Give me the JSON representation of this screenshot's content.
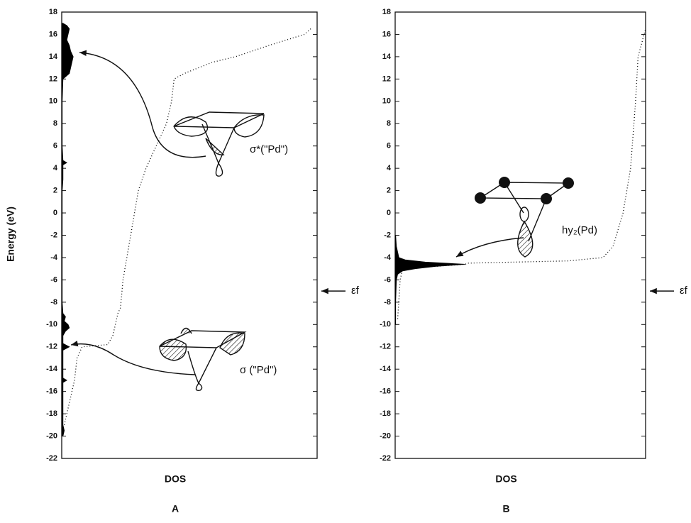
{
  "chart_data": [
    {
      "type": "dos",
      "label": "A",
      "ylabel": "Energy (eV)",
      "xlabel": "DOS",
      "ylim": [
        -22,
        18
      ],
      "yticks": [
        -22,
        -20,
        -18,
        -16,
        -14,
        -12,
        -10,
        -8,
        -6,
        -4,
        -2,
        0,
        2,
        4,
        6,
        8,
        10,
        12,
        14,
        16,
        18
      ],
      "xlim": [
        0,
        10
      ],
      "fermi_level": -7,
      "fermi_label": "εf",
      "annotations": [
        "σ*(\"Pd\")",
        "σ (\"Pd\")"
      ],
      "series": [
        {
          "style": "filled",
          "color": "#000000",
          "y": [
            -20,
            -19.5,
            -19,
            -18,
            -17,
            -16,
            -15.2,
            -15,
            -14.8,
            -14,
            -13,
            -12.3,
            -12,
            -11.7,
            -11,
            -10.6,
            -10.3,
            -10,
            -9.7,
            -9.3,
            -9,
            -8,
            -6,
            -4,
            -2,
            0,
            2,
            3,
            4.3,
            4.5,
            4.7,
            6,
            8,
            10,
            12,
            12.5,
            13,
            13.5,
            14,
            14.5,
            15,
            15.5,
            16,
            16.5,
            16.8,
            17
          ],
          "values": [
            0.05,
            0.1,
            0.05,
            0.05,
            0.05,
            0.05,
            0.05,
            0.2,
            0.05,
            0.05,
            0.05,
            0.05,
            0.3,
            0.05,
            0.05,
            0.15,
            0.3,
            0.25,
            0.1,
            0.15,
            0.05,
            0.02,
            0.02,
            0.02,
            0.02,
            0.02,
            0.02,
            0.05,
            0.05,
            0.2,
            0.05,
            0.02,
            0.02,
            0.02,
            0.05,
            0.3,
            0.35,
            0.4,
            0.45,
            0.35,
            0.3,
            0.2,
            0.25,
            0.3,
            0.2,
            0.05
          ]
        },
        {
          "style": "dotted",
          "color": "#000000",
          "y": [
            -19,
            -17,
            -15,
            -13,
            -12,
            -11.8,
            -11,
            -9,
            -8.5,
            -6,
            -2,
            2,
            4,
            6,
            8,
            10,
            12,
            12.5,
            13.5,
            14,
            15,
            16,
            16.6
          ],
          "values": [
            0.1,
            0.3,
            0.5,
            0.6,
            0.8,
            1.8,
            2.0,
            2.2,
            2.3,
            2.4,
            2.7,
            3.0,
            3.3,
            3.7,
            4.1,
            4.3,
            4.4,
            4.8,
            5.9,
            6.8,
            8.1,
            9.5,
            9.8
          ]
        }
      ]
    },
    {
      "type": "dos",
      "label": "B",
      "xlabel": "DOS",
      "ylim": [
        -22,
        18
      ],
      "yticks": [
        -22,
        -20,
        -18,
        -16,
        -14,
        -12,
        -10,
        -8,
        -6,
        -4,
        -2,
        0,
        2,
        4,
        6,
        8,
        10,
        12,
        14,
        16,
        18
      ],
      "xlim": [
        0,
        10
      ],
      "fermi_level": -7,
      "fermi_label": "εf",
      "annotations": [
        "hy₂(Pd)"
      ],
      "series": [
        {
          "style": "filled",
          "color": "#000000",
          "y": [
            -10,
            -8,
            -6,
            -5.5,
            -5.2,
            -5,
            -4.8,
            -4.6,
            -4.4,
            -4.2,
            -4,
            -3.5,
            -3,
            -2
          ],
          "values": [
            0.02,
            0.02,
            0.05,
            0.1,
            0.3,
            0.8,
            1.6,
            2.8,
            1.2,
            0.4,
            0.15,
            0.1,
            0.05,
            0.02
          ]
        },
        {
          "style": "dotted",
          "color": "#000000",
          "y": [
            -9.5,
            -6,
            -5,
            -4.6,
            -4.5,
            -4.3,
            -4,
            -3,
            0,
            4,
            10,
            14,
            16.5
          ],
          "values": [
            0.1,
            0.2,
            0.3,
            2.8,
            2.9,
            6.9,
            8.3,
            8.7,
            9.1,
            9.4,
            9.6,
            9.7,
            10
          ]
        }
      ]
    }
  ]
}
